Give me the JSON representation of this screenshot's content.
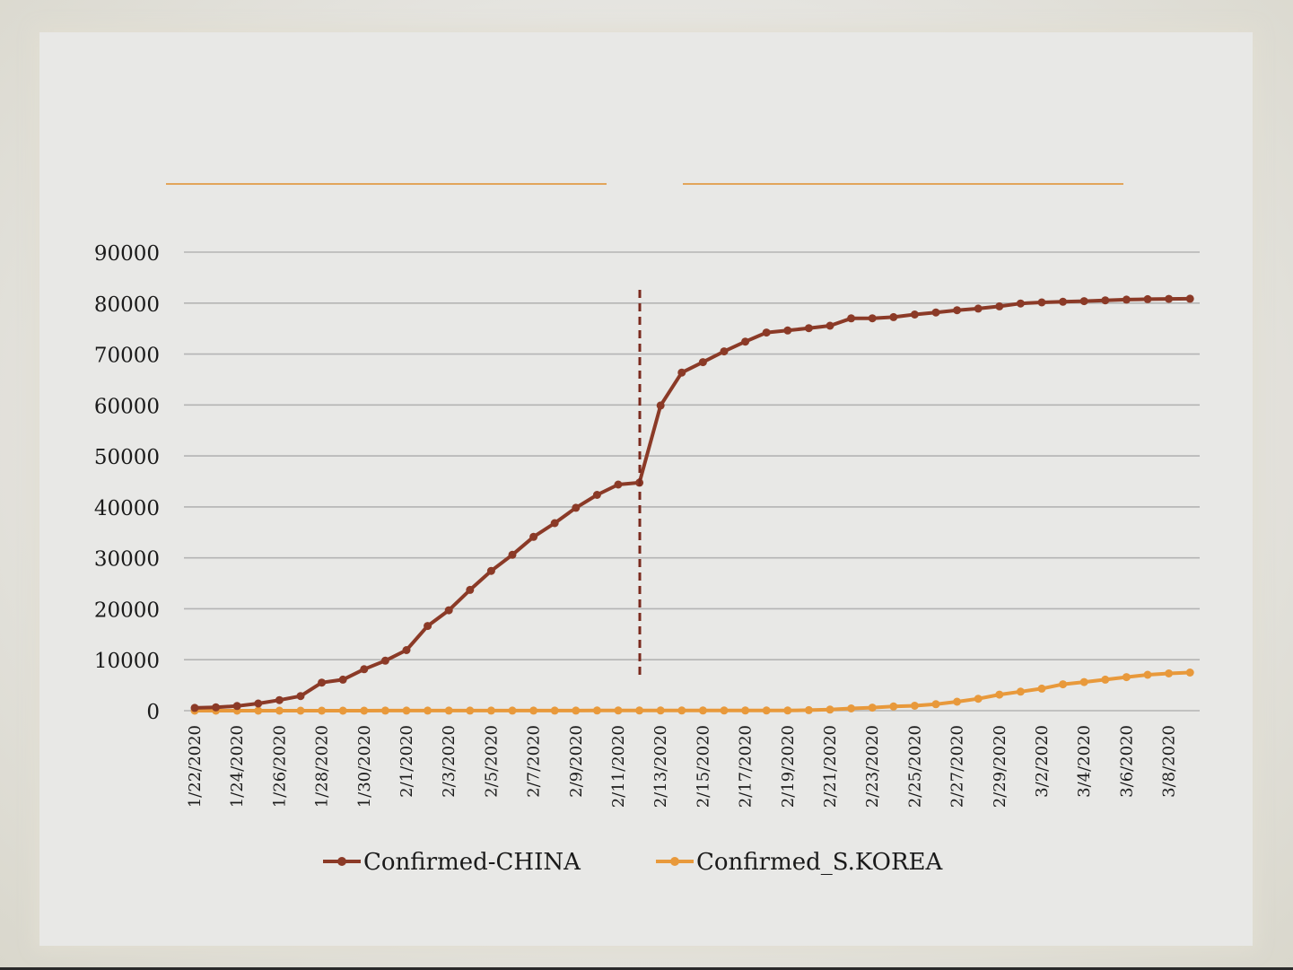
{
  "colors": {
    "china": "#8b3a27",
    "korea": "#e8993b",
    "grid": "#b4b4b4",
    "divider": "#7a2a1e",
    "title_rule": "#e2a55a"
  },
  "chart_data": {
    "type": "line",
    "y_ticks": [
      0,
      10000,
      20000,
      30000,
      40000,
      50000,
      60000,
      70000,
      80000,
      90000
    ],
    "ylim": [
      0,
      90000
    ],
    "grid": true,
    "legend": "bottom",
    "x_tick_labels": [
      "1/22/2020",
      "1/24/2020",
      "1/26/2020",
      "1/28/2020",
      "1/30/2020",
      "2/1/2020",
      "2/3/2020",
      "2/5/2020",
      "2/7/2020",
      "2/9/2020",
      "2/11/2020",
      "2/13/2020",
      "2/15/2020",
      "2/17/2020",
      "2/19/2020",
      "2/21/2020",
      "2/23/2020",
      "2/25/2020",
      "2/27/2020",
      "2/29/2020",
      "3/2/2020",
      "3/4/2020",
      "3/6/2020",
      "3/8/2020"
    ],
    "x": [
      "1/22/2020",
      "1/23/2020",
      "1/24/2020",
      "1/25/2020",
      "1/26/2020",
      "1/27/2020",
      "1/28/2020",
      "1/29/2020",
      "1/30/2020",
      "1/31/2020",
      "2/1/2020",
      "2/2/2020",
      "2/3/2020",
      "2/4/2020",
      "2/5/2020",
      "2/6/2020",
      "2/7/2020",
      "2/8/2020",
      "2/9/2020",
      "2/10/2020",
      "2/11/2020",
      "2/12/2020",
      "2/13/2020",
      "2/14/2020",
      "2/15/2020",
      "2/16/2020",
      "2/17/2020",
      "2/18/2020",
      "2/19/2020",
      "2/20/2020",
      "2/21/2020",
      "2/22/2020",
      "2/23/2020",
      "2/24/2020",
      "2/25/2020",
      "2/26/2020",
      "2/27/2020",
      "2/28/2020",
      "2/29/2020",
      "3/1/2020",
      "3/2/2020",
      "3/3/2020",
      "3/4/2020",
      "3/5/2020",
      "3/6/2020",
      "3/7/2020",
      "3/8/2020",
      "3/9/2020"
    ],
    "series": [
      {
        "name": "Confirmed-CHINA",
        "values": [
          548,
          643,
          920,
          1406,
          2075,
          2877,
          5509,
          6087,
          8141,
          9802,
          11891,
          16630,
          19716,
          23707,
          27440,
          30587,
          34110,
          36814,
          39829,
          42354,
          44386,
          44759,
          59895,
          66358,
          68413,
          70513,
          72434,
          74211,
          74619,
          75077,
          75550,
          77001,
          77022,
          77241,
          77754,
          78166,
          78600,
          78928,
          79356,
          79932,
          80136,
          80261,
          80386,
          80537,
          80690,
          80770,
          80823,
          80860
        ]
      },
      {
        "name": "Confirmed_S.KOREA",
        "values": [
          1,
          1,
          2,
          2,
          3,
          4,
          4,
          4,
          4,
          11,
          12,
          15,
          15,
          16,
          19,
          23,
          24,
          24,
          25,
          27,
          28,
          28,
          28,
          28,
          28,
          29,
          30,
          31,
          31,
          104,
          204,
          433,
          602,
          833,
          977,
          1261,
          1766,
          2337,
          3150,
          3736,
          4335,
          5186,
          5621,
          6088,
          6593,
          7041,
          7314,
          7478
        ]
      }
    ]
  },
  "legend": {
    "china_label": "Confirmed-CHINA",
    "korea_label": "Confirmed_S.KOREA"
  }
}
